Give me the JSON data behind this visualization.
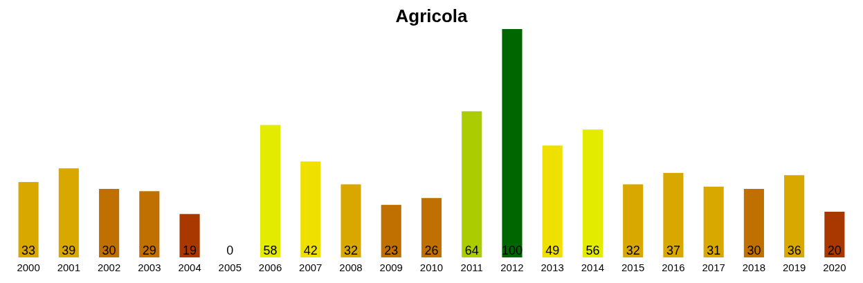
{
  "chart_data": {
    "type": "bar",
    "title": "Agricola",
    "categories": [
      "2000",
      "2001",
      "2002",
      "2003",
      "2004",
      "2005",
      "2006",
      "2007",
      "2008",
      "2009",
      "2010",
      "2011",
      "2012",
      "2013",
      "2014",
      "2015",
      "2016",
      "2017",
      "2018",
      "2019",
      "2020"
    ],
    "values": [
      33,
      39,
      30,
      29,
      19,
      0,
      58,
      42,
      32,
      23,
      26,
      64,
      100,
      49,
      56,
      32,
      37,
      31,
      30,
      36,
      20
    ],
    "colors": [
      "#d9a800",
      "#d9a800",
      "#c07000",
      "#c07000",
      "#a83800",
      "#a83800",
      "#e3ec00",
      "#f0e000",
      "#d9a800",
      "#c07000",
      "#c07000",
      "#aacc00",
      "#006600",
      "#f0e000",
      "#e3ec00",
      "#d9a800",
      "#d9a800",
      "#d9a800",
      "#c07000",
      "#d9a800",
      "#a83800"
    ],
    "ylim": [
      0,
      100
    ],
    "tick_labels": "x",
    "data_labels": true
  }
}
